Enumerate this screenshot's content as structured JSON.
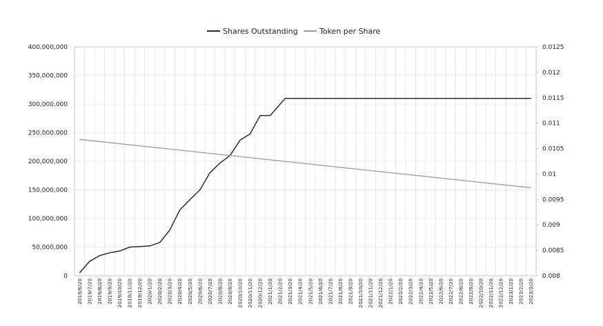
{
  "chart_data": {
    "type": "line",
    "title": "",
    "legend": {
      "placement": "top-center"
    },
    "grid": {
      "horizontal": true,
      "vertical": true
    },
    "x": [
      "2019/6/20",
      "2019/7/20",
      "2019/8/20",
      "2019/9/20",
      "2019/10/20",
      "2019/11/20",
      "2019/12/20",
      "2020/1/20",
      "2020/2/20",
      "2020/3/20",
      "2020/4/20",
      "2020/5/20",
      "2020/6/20",
      "2020/7/20",
      "2020/8/20",
      "2020/9/20",
      "2020/10/20",
      "2020/11/20",
      "2020/12/20",
      "2021/1/20",
      "2021/2/20",
      "2021/3/20",
      "2021/4/20",
      "2021/5/20",
      "2021/6/20",
      "2021/7/20",
      "2021/8/20",
      "2021/9/20",
      "2021/10/20",
      "2021/11/20",
      "2021/12/20",
      "2022/1/20",
      "2022/2/20",
      "2022/3/20",
      "2022/4/20",
      "2022/5/20",
      "2022/6/20",
      "2022/7/20",
      "2022/8/20",
      "2022/9/20",
      "2022/10/20",
      "2022/11/20",
      "2022/12/20",
      "2023/1/20",
      "2023/2/20",
      "2023/3/20"
    ],
    "y_left": {
      "ylim": [
        0,
        400000000
      ],
      "ticks": [
        "0",
        "50,000,000",
        "100,000,000",
        "150,000,000",
        "200,000,000",
        "250,000,000",
        "300,000,000",
        "350,000,000",
        "400,000,000"
      ]
    },
    "y_right": {
      "ylim": [
        0.008,
        0.0125
      ],
      "ticks": [
        "0.008",
        "0.0085",
        "0.009",
        "0.0095",
        "0.01",
        "0.0105",
        "0.011",
        "0.0115",
        "0.012",
        "0.0125"
      ]
    },
    "series": [
      {
        "name": "Shares Outstanding",
        "axis": "left",
        "color": "#1f2d3a",
        "values": [
          [
            0,
            5000000
          ],
          [
            1,
            25000000
          ],
          [
            2,
            35000000
          ],
          [
            3,
            40000000
          ],
          [
            4,
            43000000
          ],
          [
            5,
            50000000
          ],
          [
            6,
            51000000
          ],
          [
            7,
            52000000
          ],
          [
            8,
            58000000
          ],
          [
            9,
            80000000
          ],
          [
            10,
            115000000
          ],
          [
            11,
            133000000
          ],
          [
            12,
            150000000
          ],
          [
            13,
            180000000
          ],
          [
            14,
            197000000
          ],
          [
            15,
            210000000
          ],
          [
            16,
            237000000
          ],
          [
            17,
            248000000
          ],
          [
            18,
            280000000
          ],
          [
            19,
            280000000
          ],
          [
            20,
            300000000
          ],
          [
            20.5,
            310000000
          ],
          [
            21,
            310000000
          ],
          [
            22,
            310000000
          ],
          [
            23,
            310000000
          ],
          [
            24,
            310000000
          ],
          [
            25,
            310000000
          ],
          [
            26,
            310000000
          ],
          [
            27,
            310000000
          ],
          [
            28,
            310000000
          ],
          [
            29,
            310000000
          ],
          [
            30,
            310000000
          ],
          [
            31,
            310000000
          ],
          [
            32,
            310000000
          ],
          [
            33,
            310000000
          ],
          [
            34,
            310000000
          ],
          [
            35,
            310000000
          ],
          [
            36,
            310000000
          ],
          [
            37,
            310000000
          ],
          [
            38,
            310000000
          ],
          [
            39,
            310000000
          ],
          [
            40,
            310000000
          ],
          [
            41,
            310000000
          ],
          [
            42,
            310000000
          ],
          [
            43,
            310000000
          ],
          [
            44,
            310000000
          ],
          [
            45,
            310000000
          ]
        ]
      },
      {
        "name": "Token per Share",
        "axis": "right",
        "color": "#999999",
        "values": [
          [
            0,
            0.01068
          ],
          [
            45,
            0.00973
          ]
        ]
      }
    ]
  }
}
